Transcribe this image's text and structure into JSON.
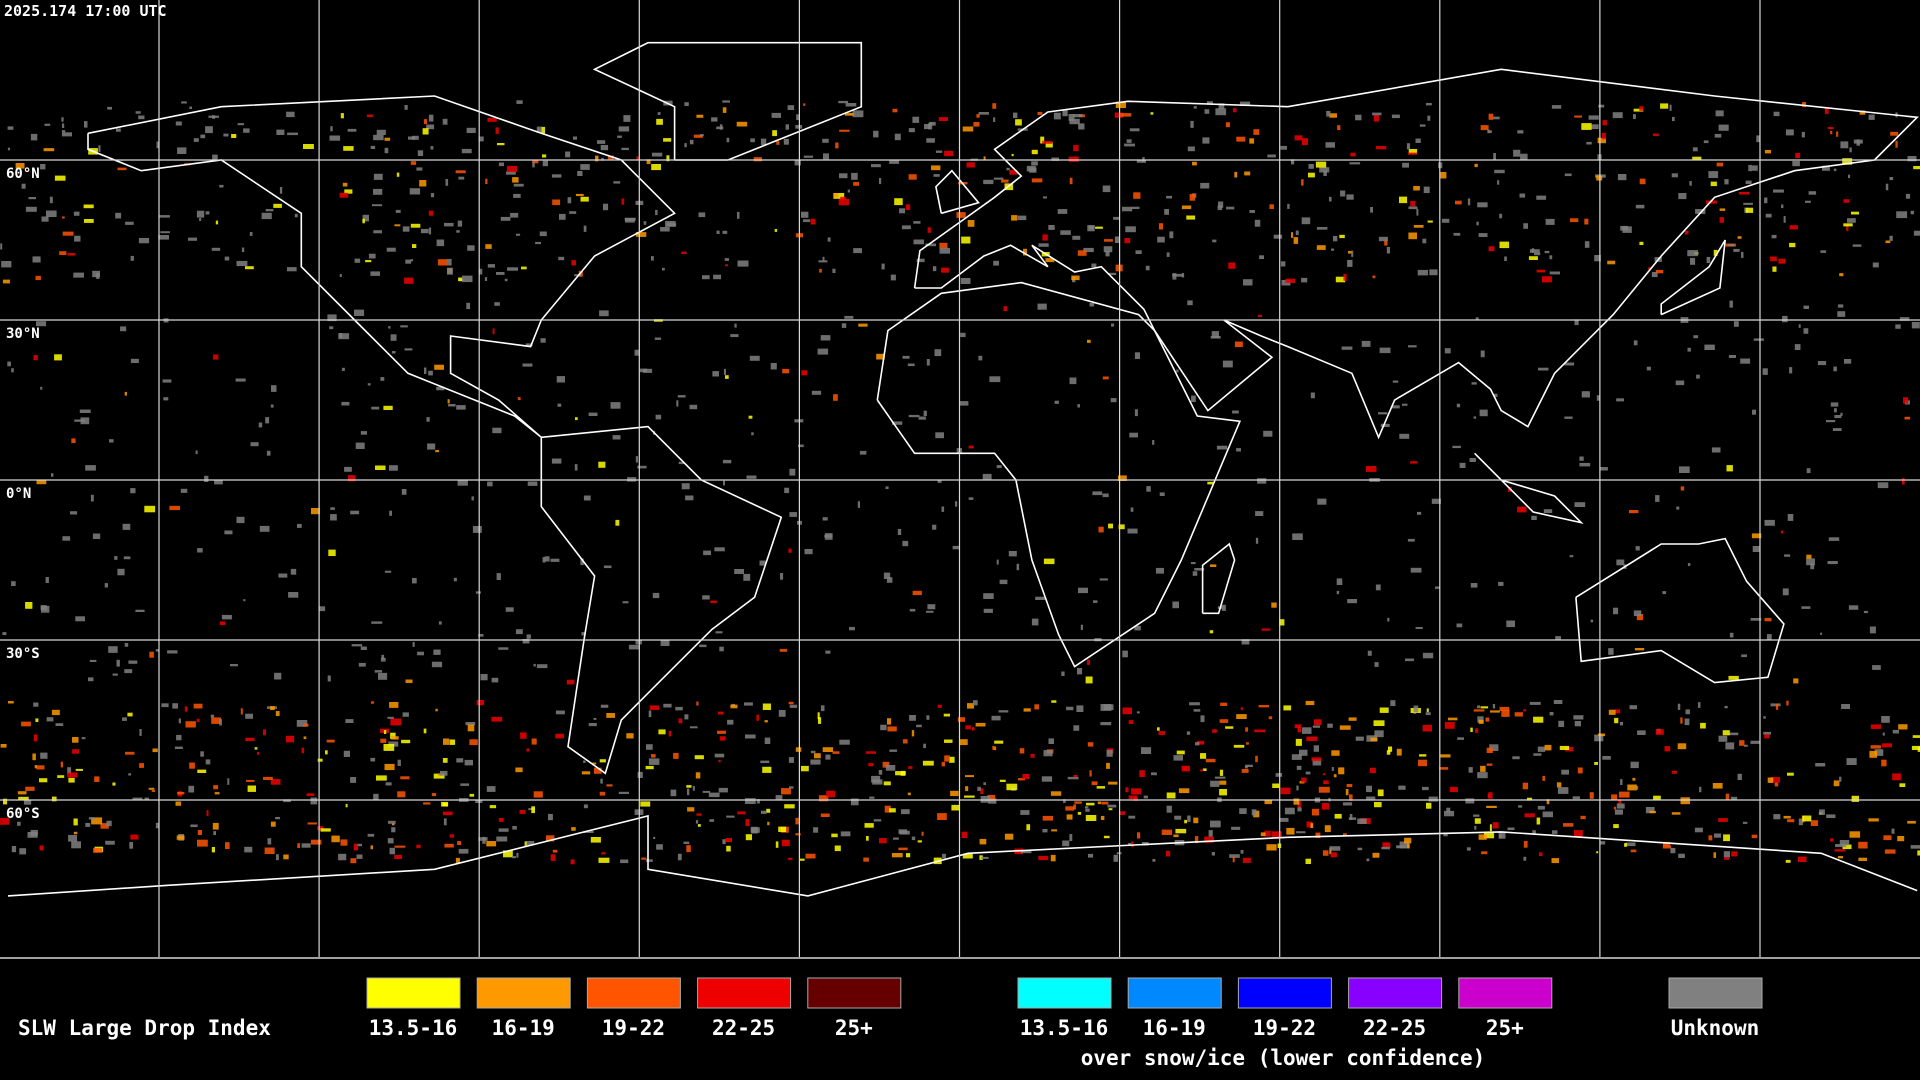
{
  "header": {
    "timestamp": "2025.174 17:00 UTC"
  },
  "map": {
    "lat_labels": [
      "60°N",
      "30°N",
      "0°N",
      "30°S",
      "60°S"
    ]
  },
  "legend": {
    "title": "SLW Large Drop Index",
    "groups": [
      {
        "items": [
          {
            "label": "13.5-16",
            "color": "#ffff00"
          },
          {
            "label": "16-19",
            "color": "#ff9900"
          },
          {
            "label": "19-22",
            "color": "#ff5500"
          },
          {
            "label": "22-25",
            "color": "#ee0000"
          },
          {
            "label": "25+",
            "color": "#660000"
          }
        ]
      },
      {
        "items": [
          {
            "label": "13.5-16",
            "color": "#00ffff"
          },
          {
            "label": "16-19",
            "color": "#0088ff"
          },
          {
            "label": "19-22",
            "color": "#0000ff"
          },
          {
            "label": "22-25",
            "color": "#8800ff"
          },
          {
            "label": "25+",
            "color": "#cc00cc"
          }
        ],
        "note": "over snow/ice (lower confidence)"
      }
    ],
    "unknown": {
      "label": "Unknown",
      "color": "#808080"
    }
  }
}
